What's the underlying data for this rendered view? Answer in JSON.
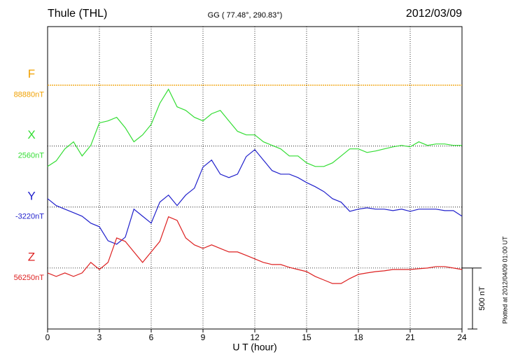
{
  "chart_data": {
    "type": "line",
    "title": "Thule (THL)",
    "subtitle": "GG ( 77.48°, 290.83°)",
    "date": "2012/03/09",
    "x_label": "U T (hour)",
    "scale_bar": {
      "value": 500,
      "label": "500 nT"
    },
    "footnote": "Plotted at 2012/04/09 01:00 UT",
    "xlim": [
      0,
      24
    ],
    "xticks": [
      0,
      3,
      6,
      9,
      12,
      15,
      18,
      21,
      24
    ],
    "ylim": [
      -500,
      1980
    ],
    "grid": true,
    "x": [
      0,
      0.5,
      1,
      1.5,
      2,
      2.5,
      3,
      3.5,
      4,
      4.5,
      5,
      5.5,
      6,
      6.5,
      7,
      7.5,
      8,
      8.5,
      9,
      9.5,
      10,
      10.5,
      11,
      11.5,
      12,
      12.5,
      13,
      13.5,
      14,
      14.5,
      15,
      15.5,
      16,
      16.5,
      17,
      17.5,
      18,
      18.5,
      19,
      19.5,
      20,
      20.5,
      21,
      21.5,
      22,
      22.5,
      23,
      23.5,
      24
    ],
    "series": [
      {
        "name": "F",
        "baseline_label": "88880nT",
        "color": "#f0a000",
        "values": [
          0,
          0,
          0,
          0,
          0,
          0,
          0,
          0,
          0,
          0,
          0,
          0,
          0,
          0,
          0,
          0,
          0,
          0,
          0,
          0,
          0,
          0,
          0,
          0,
          0,
          0,
          0,
          0,
          0,
          0,
          0,
          0,
          0,
          0,
          0,
          0,
          0,
          0,
          0,
          0,
          0,
          0,
          0,
          0,
          0,
          0,
          0,
          0,
          0
        ]
      },
      {
        "name": "X",
        "baseline_label": "2560nT",
        "color": "#33dd33",
        "values": [
          -167,
          -121,
          -23,
          35,
          -81,
          6,
          190,
          207,
          236,
          150,
          35,
          92,
          178,
          351,
          466,
          322,
          293,
          236,
          207,
          265,
          293,
          207,
          121,
          92,
          92,
          35,
          6,
          -23,
          -81,
          -81,
          -138,
          -167,
          -167,
          -138,
          -81,
          -23,
          -23,
          -52,
          -40,
          -23,
          -6,
          6,
          -6,
          35,
          6,
          17,
          17,
          6,
          6
        ]
      },
      {
        "name": "Y",
        "baseline_label": "-3220nT",
        "color": "#2020cc",
        "values": [
          69,
          12,
          -17,
          -46,
          -75,
          -132,
          -161,
          -276,
          -305,
          -247,
          -17,
          -75,
          -132,
          40,
          98,
          12,
          98,
          155,
          328,
          385,
          270,
          242,
          270,
          414,
          471,
          385,
          299,
          270,
          270,
          242,
          201,
          167,
          127,
          69,
          40,
          -35,
          -17,
          -6,
          -17,
          -17,
          -29,
          -17,
          -35,
          -17,
          -17,
          -17,
          -29,
          -29,
          -75
        ]
      },
      {
        "name": "Z",
        "baseline_label": "56250nT",
        "color": "#dd2020",
        "values": [
          -40,
          -69,
          -40,
          -69,
          -40,
          46,
          -12,
          46,
          247,
          218,
          132,
          46,
          132,
          218,
          420,
          391,
          247,
          190,
          161,
          190,
          161,
          132,
          132,
          104,
          75,
          46,
          29,
          29,
          6,
          -12,
          -29,
          -69,
          -98,
          -127,
          -127,
          -86,
          -52,
          -40,
          -29,
          -23,
          -12,
          -12,
          -12,
          -6,
          0,
          12,
          12,
          0,
          -12
        ]
      }
    ]
  }
}
